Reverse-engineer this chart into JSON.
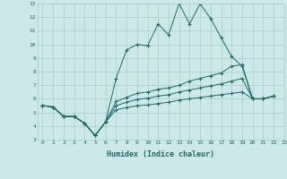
{
  "xlabel": "Humidex (Indice chaleur)",
  "bg_color": "#cce8e8",
  "grid_color": "#aacccc",
  "line_color": "#1a6b6b",
  "xlim": [
    -0.5,
    23
  ],
  "ylim": [
    3,
    13
  ],
  "xticks": [
    0,
    1,
    2,
    3,
    4,
    5,
    6,
    7,
    8,
    9,
    10,
    11,
    12,
    13,
    14,
    15,
    16,
    17,
    18,
    19,
    20,
    21,
    22,
    23
  ],
  "yticks": [
    3,
    4,
    5,
    6,
    7,
    8,
    9,
    10,
    11,
    12,
    13
  ],
  "series": [
    [
      5.5,
      5.4,
      4.7,
      4.7,
      4.2,
      3.3,
      4.3,
      7.5,
      9.6,
      10.0,
      9.9,
      11.5,
      10.7,
      13.0,
      11.5,
      13.0,
      11.9,
      10.5,
      9.1,
      8.4,
      6.0,
      6.0,
      6.2
    ],
    [
      5.5,
      5.4,
      4.7,
      4.7,
      4.2,
      3.3,
      4.3,
      5.8,
      6.1,
      6.4,
      6.5,
      6.7,
      6.8,
      7.0,
      7.3,
      7.5,
      7.7,
      7.9,
      8.4,
      8.5,
      6.0,
      6.0,
      6.2
    ],
    [
      5.5,
      5.4,
      4.7,
      4.7,
      4.2,
      3.3,
      4.3,
      5.5,
      5.75,
      5.95,
      6.05,
      6.2,
      6.3,
      6.5,
      6.65,
      6.8,
      6.95,
      7.1,
      7.3,
      7.5,
      6.0,
      6.0,
      6.2
    ],
    [
      5.5,
      5.4,
      4.7,
      4.7,
      4.2,
      3.3,
      4.3,
      5.2,
      5.35,
      5.5,
      5.55,
      5.65,
      5.75,
      5.9,
      6.0,
      6.1,
      6.2,
      6.3,
      6.4,
      6.5,
      6.0,
      6.0,
      6.2
    ]
  ]
}
